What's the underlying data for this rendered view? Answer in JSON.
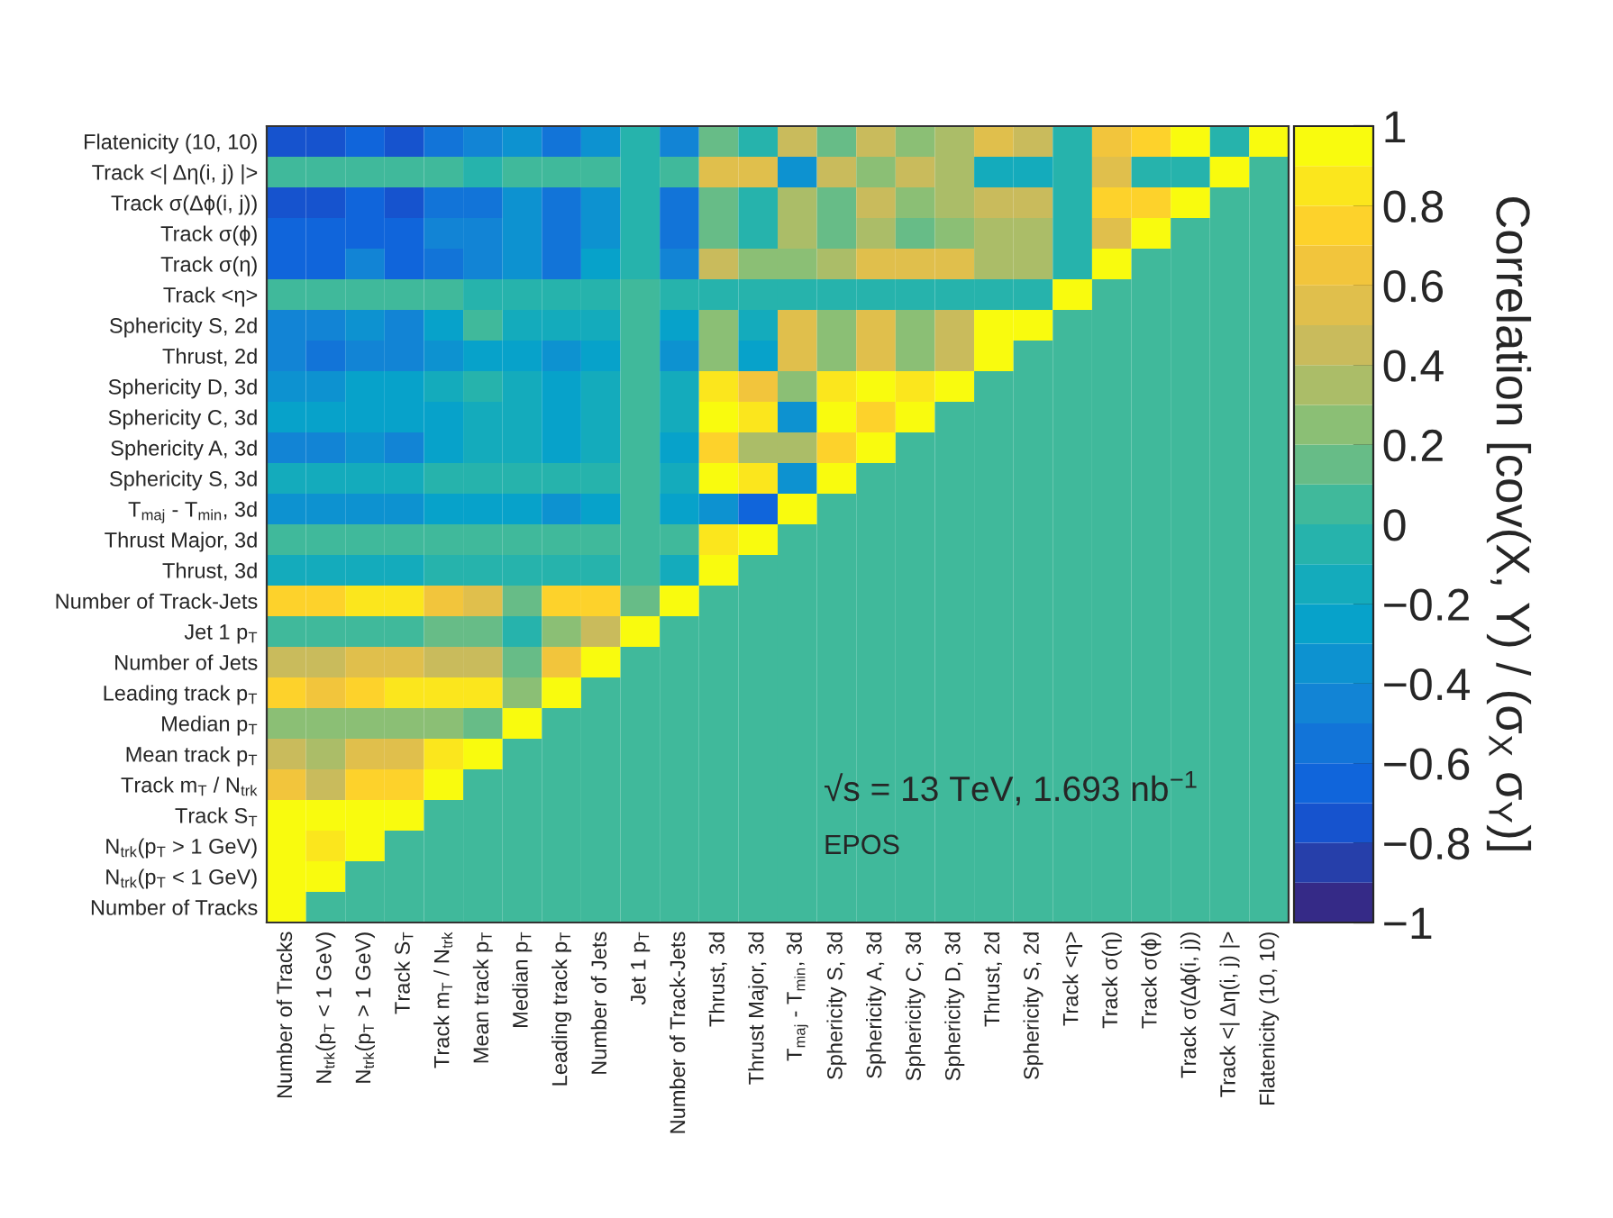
{
  "chart_data": {
    "type": "heatmap",
    "categories": [
      "Number of Tracks",
      "N$_{trk}$(p$_{T}$ < 1 GeV)",
      "N$_{trk}$(p$_{T}$ > 1 GeV)",
      "Track S$_{T}$",
      "Track m$_{T}$ / N$_{trk}$",
      "Mean track p$_{T}$",
      "Median p$_{T}$",
      "Leading track p$_{T}$",
      "Number of Jets",
      "Jet 1 p$_{T}$",
      "Number of Track-Jets",
      "Thrust, 3d",
      "Thrust Major, 3d",
      "T$_{maj}$ - T$_{min}$, 3d",
      "Sphericity S, 3d",
      "Sphericity A, 3d",
      "Sphericity C, 3d",
      "Sphericity D, 3d",
      "Thrust, 2d",
      "Sphericity S, 2d",
      "Track <η>",
      "Track σ(η)",
      "Track σ(ϕ)",
      "Track σ(Δϕ(i, j))",
      "Track <| Δη(i, j) |>",
      "Flatenicity (10, 10)"
    ],
    "y_categories": [
      "Flatenicity (10, 10)",
      "Track <| Δη(i, j) |>",
      "Track σ(Δϕ(i, j))",
      "Track σ(ϕ)",
      "Track σ(η)",
      "Track <η>",
      "Sphericity S, 2d",
      "Thrust, 2d",
      "Sphericity D, 3d",
      "Sphericity C, 3d",
      "Sphericity A, 3d",
      "Sphericity S, 3d",
      "T$_{maj}$ - T$_{min}$, 3d",
      "Thrust Major, 3d",
      "Thrust, 3d",
      "Number of Track-Jets",
      "Jet 1 p$_{T}$",
      "Number of Jets",
      "Leading track p$_{T}$",
      "Median p$_{T}$",
      "Mean track p$_{T}$",
      "Track m$_{T}$ / N$_{trk}$",
      "Track S$_{T}$",
      "N$_{trk}$(p$_{T}$ > 1 GeV)",
      "N$_{trk}$(p$_{T}$ < 1 GeV)",
      "Number of Tracks"
    ],
    "cells": [
      [
        -0.75,
        -0.75,
        -0.65,
        -0.75,
        -0.55,
        -0.45,
        -0.35,
        -0.55,
        -0.35,
        -0.05,
        -0.45,
        0.15,
        -0.05,
        0.45,
        0.15,
        0.45,
        0.25,
        0.35,
        0.55,
        0.45,
        -0.05,
        0.65,
        0.75,
        0.95,
        -0.05,
        1
      ],
      [
        0.05,
        0.05,
        0.05,
        0.05,
        0.05,
        -0.05,
        0.05,
        0.05,
        0.05,
        -0.05,
        0.05,
        0.55,
        0.55,
        -0.35,
        0.45,
        0.25,
        0.45,
        0.35,
        -0.15,
        -0.15,
        -0.05,
        0.55,
        -0.05,
        -0.05,
        1,
        0
      ],
      [
        -0.75,
        -0.75,
        -0.65,
        -0.75,
        -0.55,
        -0.55,
        -0.35,
        -0.55,
        -0.35,
        -0.05,
        -0.55,
        0.15,
        -0.05,
        0.35,
        0.15,
        0.45,
        0.25,
        0.35,
        0.45,
        0.45,
        -0.05,
        0.75,
        0.75,
        1,
        0,
        0
      ],
      [
        -0.65,
        -0.65,
        -0.65,
        -0.65,
        -0.45,
        -0.45,
        -0.35,
        -0.55,
        -0.35,
        -0.05,
        -0.55,
        0.15,
        -0.05,
        0.35,
        0.15,
        0.35,
        0.15,
        0.25,
        0.35,
        0.35,
        -0.05,
        0.55,
        1,
        0,
        0,
        0
      ],
      [
        -0.65,
        -0.65,
        -0.45,
        -0.65,
        -0.55,
        -0.45,
        -0.35,
        -0.55,
        -0.25,
        -0.05,
        -0.45,
        0.45,
        0.25,
        0.25,
        0.35,
        0.55,
        0.55,
        0.55,
        0.35,
        0.35,
        -0.05,
        1,
        0,
        0,
        0,
        0
      ],
      [
        0.05,
        0.05,
        0.05,
        0.05,
        0.05,
        -0.05,
        -0.05,
        -0.05,
        -0.05,
        0.05,
        -0.05,
        -0.05,
        -0.05,
        -0.05,
        -0.05,
        -0.05,
        -0.05,
        -0.05,
        -0.05,
        -0.05,
        1,
        0,
        0,
        0,
        0,
        0
      ],
      [
        -0.45,
        -0.45,
        -0.35,
        -0.45,
        -0.25,
        0.05,
        -0.15,
        -0.15,
        -0.15,
        0.05,
        -0.25,
        0.25,
        -0.15,
        0.55,
        0.25,
        0.55,
        0.25,
        0.45,
        0.95,
        1,
        0,
        0,
        0,
        0,
        0,
        0
      ],
      [
        -0.45,
        -0.55,
        -0.45,
        -0.45,
        -0.35,
        -0.25,
        -0.25,
        -0.35,
        -0.25,
        0.05,
        -0.35,
        0.25,
        -0.25,
        0.55,
        0.25,
        0.55,
        0.25,
        0.45,
        1,
        0,
        0,
        0,
        0,
        0,
        0,
        0
      ],
      [
        -0.35,
        -0.35,
        -0.25,
        -0.25,
        -0.15,
        -0.05,
        -0.15,
        -0.25,
        -0.15,
        0.05,
        -0.15,
        0.85,
        0.65,
        0.25,
        0.85,
        0.95,
        0.85,
        1,
        0,
        0,
        0,
        0,
        0,
        0,
        0,
        0
      ],
      [
        -0.25,
        -0.25,
        -0.25,
        -0.25,
        -0.25,
        -0.15,
        -0.15,
        -0.25,
        -0.15,
        0.05,
        -0.15,
        0.95,
        0.85,
        -0.35,
        0.95,
        0.75,
        1,
        0,
        0,
        0,
        0,
        0,
        0,
        0,
        0,
        0
      ],
      [
        -0.45,
        -0.45,
        -0.35,
        -0.45,
        -0.25,
        -0.15,
        -0.15,
        -0.25,
        -0.15,
        0.05,
        -0.25,
        0.75,
        0.35,
        0.35,
        0.75,
        1,
        0,
        0,
        0,
        0,
        0,
        0,
        0,
        0,
        0,
        0
      ],
      [
        -0.15,
        -0.15,
        -0.15,
        -0.15,
        -0.05,
        -0.05,
        -0.05,
        -0.05,
        -0.05,
        0.05,
        -0.15,
        0.95,
        0.85,
        -0.35,
        1,
        0,
        0,
        0,
        0,
        0,
        0,
        0,
        0,
        0,
        0,
        0
      ],
      [
        -0.35,
        -0.35,
        -0.35,
        -0.35,
        -0.25,
        -0.25,
        -0.25,
        -0.35,
        -0.25,
        0.05,
        -0.25,
        -0.35,
        -0.65,
        1,
        0,
        0,
        0,
        0,
        0,
        0,
        0,
        0,
        0,
        0,
        0,
        0
      ],
      [
        0.05,
        0.05,
        0.05,
        0.05,
        0.05,
        0.05,
        0.05,
        0.05,
        0.05,
        0.05,
        0.05,
        0.85,
        1,
        0,
        0,
        0,
        0,
        0,
        0,
        0,
        0,
        0,
        0,
        0,
        0,
        0
      ],
      [
        -0.15,
        -0.15,
        -0.15,
        -0.15,
        -0.05,
        -0.05,
        -0.05,
        -0.05,
        -0.05,
        0.05,
        -0.15,
        1,
        0,
        0,
        0,
        0,
        0,
        0,
        0,
        0,
        0,
        0,
        0,
        0,
        0,
        0
      ],
      [
        0.75,
        0.75,
        0.85,
        0.85,
        0.65,
        0.55,
        0.15,
        0.75,
        0.75,
        0.15,
        1,
        0,
        0,
        0,
        0,
        0,
        0,
        0,
        0,
        0,
        0,
        0,
        0,
        0,
        0,
        0
      ],
      [
        0.05,
        0.05,
        0.05,
        0.05,
        0.15,
        0.15,
        -0.05,
        0.25,
        0.45,
        1,
        0,
        0,
        0,
        0,
        0,
        0,
        0,
        0,
        0,
        0,
        0,
        0,
        0,
        0,
        0,
        0
      ],
      [
        0.45,
        0.45,
        0.55,
        0.55,
        0.45,
        0.45,
        0.15,
        0.65,
        1,
        0,
        0,
        0,
        0,
        0,
        0,
        0,
        0,
        0,
        0,
        0,
        0,
        0,
        0,
        0,
        0,
        0
      ],
      [
        0.75,
        0.65,
        0.75,
        0.85,
        0.85,
        0.85,
        0.25,
        1,
        0,
        0,
        0,
        0,
        0,
        0,
        0,
        0,
        0,
        0,
        0,
        0,
        0,
        0,
        0,
        0,
        0,
        0
      ],
      [
        0.25,
        0.25,
        0.25,
        0.25,
        0.25,
        0.15,
        1,
        0,
        0,
        0,
        0,
        0,
        0,
        0,
        0,
        0,
        0,
        0,
        0,
        0,
        0,
        0,
        0,
        0,
        0,
        0
      ],
      [
        0.45,
        0.35,
        0.55,
        0.55,
        0.85,
        1,
        0,
        0,
        0,
        0,
        0,
        0,
        0,
        0,
        0,
        0,
        0,
        0,
        0,
        0,
        0,
        0,
        0,
        0,
        0,
        0
      ],
      [
        0.65,
        0.45,
        0.75,
        0.75,
        1,
        0,
        0,
        0,
        0,
        0,
        0,
        0,
        0,
        0,
        0,
        0,
        0,
        0,
        0,
        0,
        0,
        0,
        0,
        0,
        0,
        0
      ],
      [
        0.95,
        0.95,
        0.95,
        1,
        0,
        0,
        0,
        0,
        0,
        0,
        0,
        0,
        0,
        0,
        0,
        0,
        0,
        0,
        0,
        0,
        0,
        0,
        0,
        0,
        0,
        0
      ],
      [
        0.95,
        0.85,
        1,
        0,
        0,
        0,
        0,
        0,
        0,
        0,
        0,
        0,
        0,
        0,
        0,
        0,
        0,
        0,
        0,
        0,
        0,
        0,
        0,
        0,
        0,
        0
      ],
      [
        0.95,
        1,
        0,
        0,
        0,
        0,
        0,
        0,
        0,
        0,
        0,
        0,
        0,
        0,
        0,
        0,
        0,
        0,
        0,
        0,
        0,
        0,
        0,
        0,
        0,
        0
      ],
      [
        1,
        0,
        0,
        0,
        0,
        0,
        0,
        0,
        0,
        0,
        0,
        0,
        0,
        0,
        0,
        0,
        0,
        0,
        0,
        0,
        0,
        0,
        0,
        0,
        0,
        0
      ]
    ],
    "clim": [
      -1,
      1
    ],
    "cticks": [
      -1,
      -0.8,
      -0.6,
      -0.4,
      -0.2,
      0,
      0.2,
      0.4,
      0.6,
      0.8,
      1
    ],
    "clabel": "Correlation [cov(X, Y) / (σ$_{X}$ σ$_{Y}$)]",
    "annotations": [
      "√s = 13 TeV, 1.693 nb$^{−1}$",
      "EPOS"
    ],
    "grid": false
  }
}
